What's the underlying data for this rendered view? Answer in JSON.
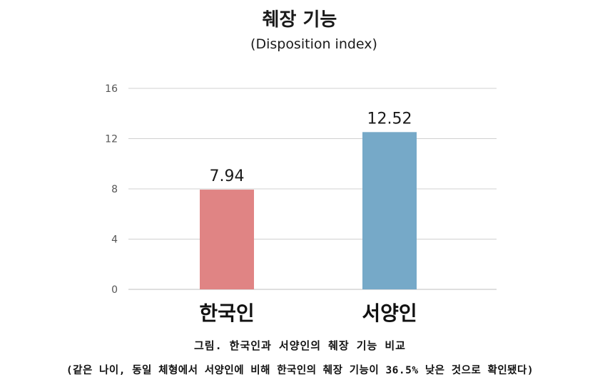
{
  "chart_data": {
    "type": "bar",
    "title": "췌장 기능",
    "subtitle": "(Disposition index)",
    "categories": [
      "한국인",
      "서양인"
    ],
    "values": [
      7.94,
      12.52
    ],
    "data_labels": [
      "7.94",
      "12.52"
    ],
    "colors": [
      "#e08484",
      "#76a9c8"
    ],
    "ylim": [
      0,
      16
    ],
    "yticks": [
      0,
      4,
      8,
      12,
      16
    ],
    "ytick_labels": [
      "0",
      "4",
      "8",
      "12",
      "16"
    ],
    "grid": true,
    "legend": "none"
  },
  "caption": {
    "line1": "그림. 한국인과 서양인의 췌장 기능 비교",
    "line2": "(같은 나이, 동일 체형에서 서양인에 비해 한국인의 췌장 기능이 36.5% 낮은 것으로 확인됐다)"
  }
}
